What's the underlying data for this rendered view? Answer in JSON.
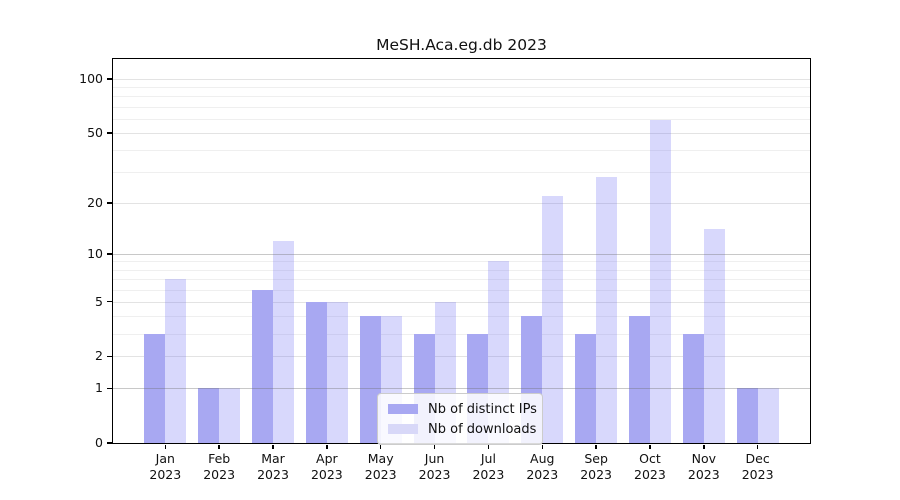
{
  "chart_data": {
    "type": "bar",
    "title": "MeSH.Aca.eg.db 2023",
    "year_label": "2023",
    "categories": [
      "Jan",
      "Feb",
      "Mar",
      "Apr",
      "May",
      "Jun",
      "Jul",
      "Aug",
      "Sep",
      "Oct",
      "Nov",
      "Dec"
    ],
    "series": [
      {
        "key": "distinct-ips",
        "name": "Nb of distinct IPs",
        "color": "#a8a8f2",
        "values": [
          3,
          1,
          6,
          5,
          4,
          3,
          3,
          4,
          3,
          4,
          3,
          1
        ]
      },
      {
        "key": "downloads",
        "name": "Nb of downloads",
        "color": "#d8d8f8",
        "values": [
          7,
          1,
          12,
          5,
          4,
          5,
          9,
          22,
          28,
          59,
          14,
          1
        ]
      }
    ],
    "yscale": "log1p",
    "yticks": [
      100,
      50,
      20,
      10,
      5,
      2,
      1,
      0
    ],
    "ylim": [
      0,
      130
    ],
    "grid": true,
    "legend_position": "lower center",
    "background_color": "#ffffff",
    "axis_color": "#000000"
  }
}
